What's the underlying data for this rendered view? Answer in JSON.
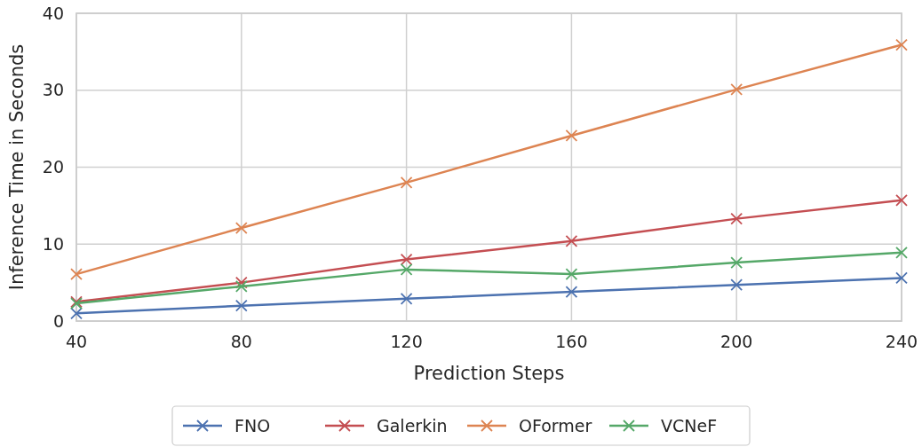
{
  "chart_data": {
    "type": "line",
    "xlabel": "Prediction Steps",
    "ylabel": "Inference Time in Seconds",
    "x": [
      40,
      80,
      120,
      160,
      200,
      240
    ],
    "xlim": [
      40,
      240
    ],
    "xticks": [
      40,
      80,
      120,
      160,
      200,
      240
    ],
    "ylim": [
      0,
      40
    ],
    "yticks": [
      0,
      10,
      20,
      30,
      40
    ],
    "grid": true,
    "legend": "bottom",
    "marker": "cross",
    "line_style": "solid",
    "series": [
      {
        "name": "FNO",
        "color": "#4c72b0",
        "values": [
          1.0,
          2.0,
          2.9,
          3.8,
          4.7,
          5.6
        ]
      },
      {
        "name": "Galerkin",
        "color": "#c44e52",
        "values": [
          2.5,
          5.0,
          8.0,
          10.4,
          13.3,
          15.7
        ]
      },
      {
        "name": "OFormer",
        "color": "#dd8452",
        "values": [
          6.1,
          12.1,
          18.0,
          24.1,
          30.1,
          35.9
        ]
      },
      {
        "name": "VCNeF",
        "color": "#55a868",
        "values": [
          2.3,
          4.5,
          6.7,
          6.1,
          7.6,
          8.9
        ]
      }
    ]
  }
}
